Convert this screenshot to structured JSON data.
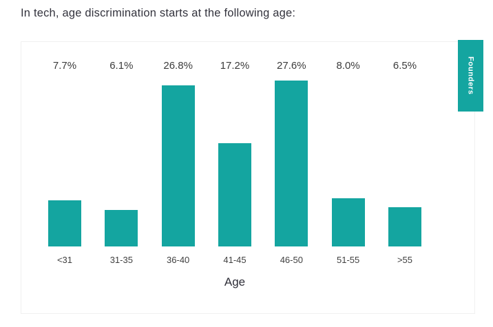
{
  "title": "In tech, age discrimination starts at the following age:",
  "side_tab": {
    "label": "Founders"
  },
  "colors": {
    "accent": "#14a5a0",
    "title_text": "#33333d",
    "label_text": "#3b3b3b"
  },
  "chart_data": {
    "type": "bar",
    "title": "In tech, age discrimination starts at the following age:",
    "categories": [
      "<31",
      "31-35",
      "36-40",
      "41-45",
      "46-50",
      "51-55",
      ">55"
    ],
    "values": [
      7.7,
      6.1,
      26.8,
      17.2,
      27.6,
      8.0,
      6.5
    ],
    "value_labels": [
      "7.7%",
      "6.1%",
      "26.8%",
      "17.2%",
      "27.6%",
      "8.0%",
      "6.5%"
    ],
    "xlabel": "Age",
    "ylabel": "",
    "ylim": [
      0,
      28
    ],
    "grid": false,
    "bar_color": "#14a5a0",
    "legend_position": "right-tab",
    "legend_label": "Founders"
  }
}
